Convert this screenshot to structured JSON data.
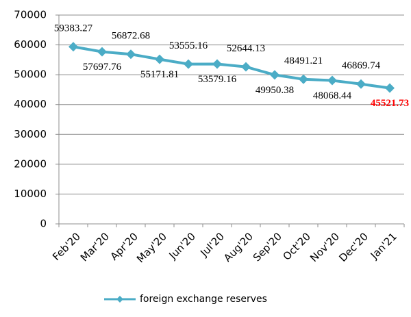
{
  "chart_data": {
    "type": "line",
    "categories": [
      "Feb'20",
      "Mar'20",
      "Apr'20",
      "May'20",
      "Jun'20",
      "Jul'20",
      "Aug'20",
      "Sep'20",
      "Oct'20",
      "Nov'20",
      "Dec'20",
      "Jan'21"
    ],
    "series": [
      {
        "name": "foreign exchange  reserves",
        "color": "#4bacc6",
        "values": [
          59383.27,
          57697.76,
          56872.68,
          55171.81,
          53555.16,
          53579.16,
          52644.13,
          49950.38,
          48491.21,
          48068.44,
          46869.74,
          45521.73
        ]
      }
    ],
    "ylim": [
      0,
      70000
    ],
    "yticks": [
      0,
      10000,
      20000,
      30000,
      40000,
      50000,
      60000,
      70000
    ],
    "grid": true,
    "legend": "bottom",
    "highlight_last_label_color": "#ff0000"
  }
}
